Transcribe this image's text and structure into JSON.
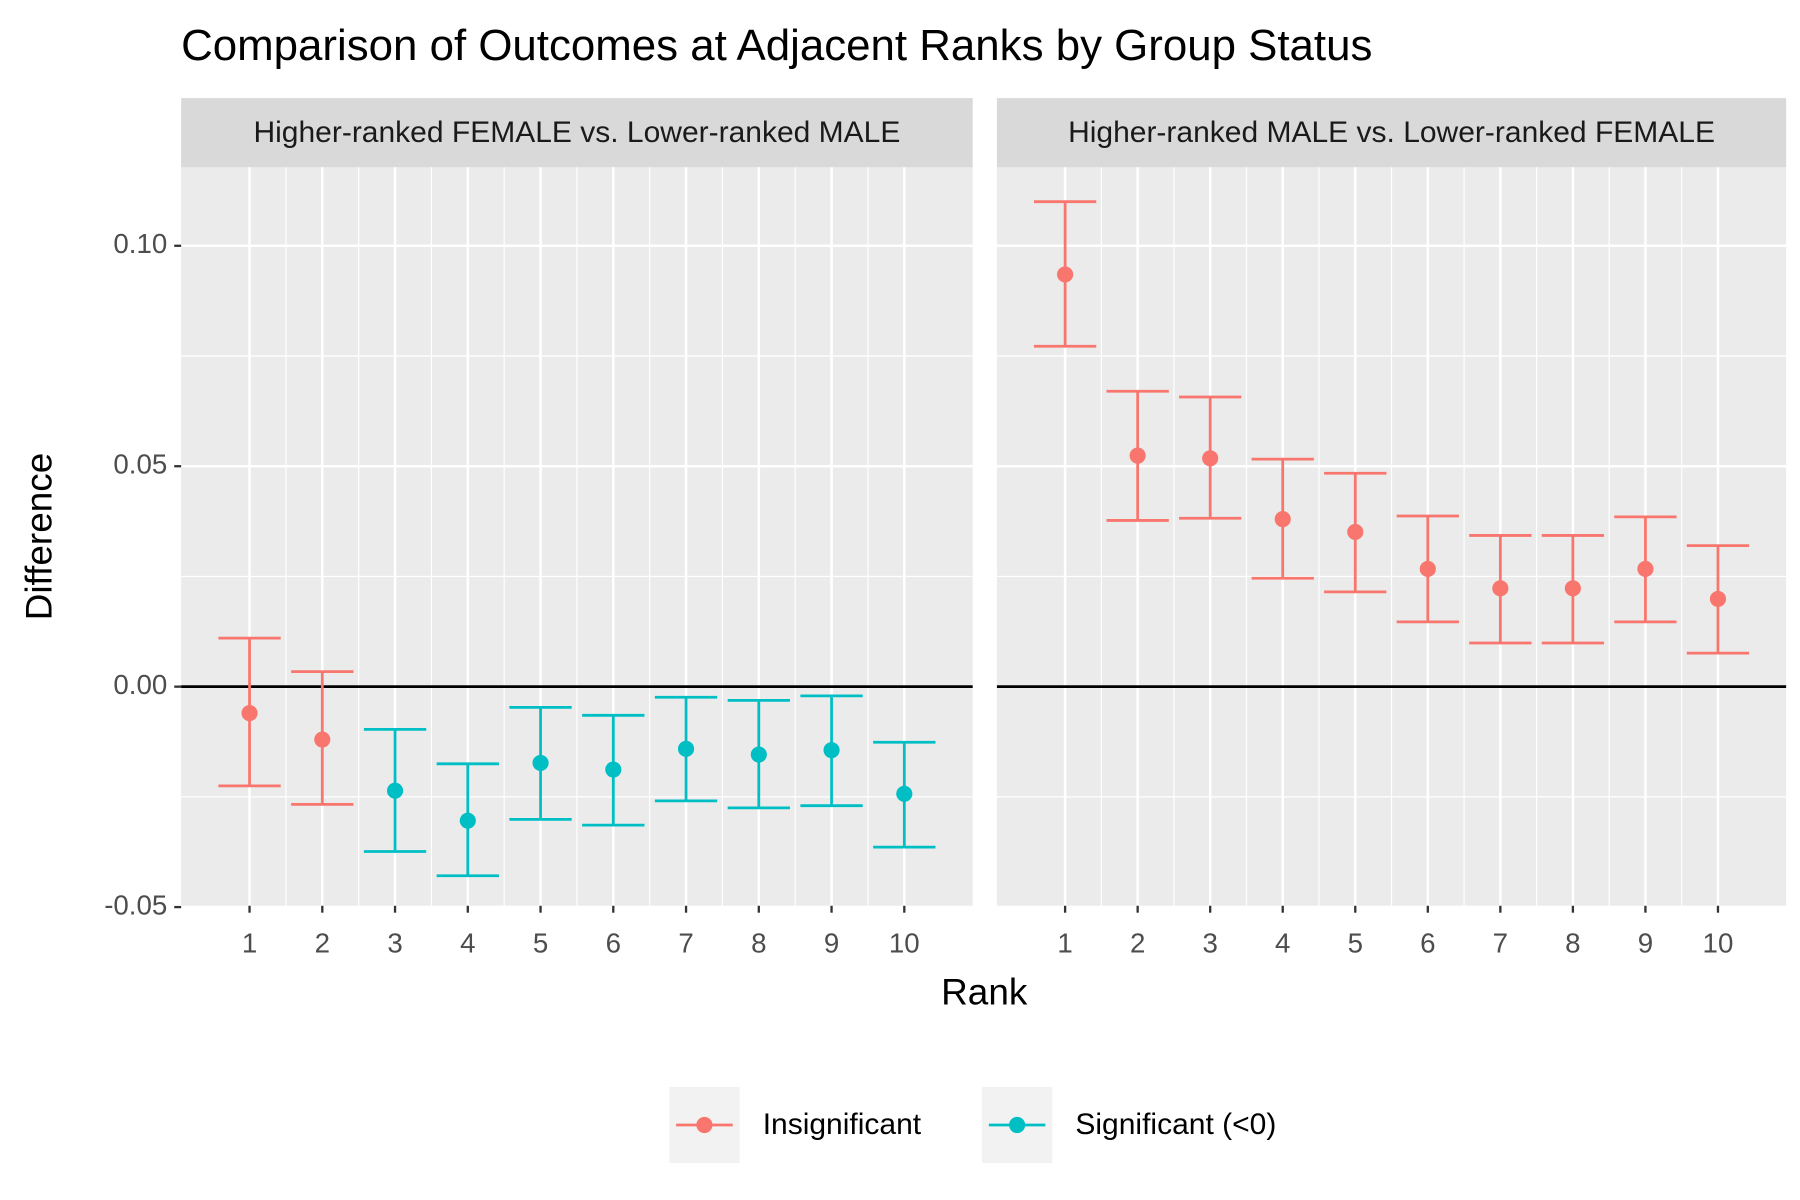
{
  "chart_data": {
    "type": "errorbar",
    "title": "Comparison of Outcomes at Adjacent Ranks by Group Status",
    "x_label": "Rank",
    "y_label": "Difference",
    "categories": [
      1,
      2,
      3,
      4,
      5,
      6,
      7,
      8,
      9,
      10
    ],
    "xlim": [
      0.06,
      10.94
    ],
    "ylim": [
      -0.0497,
      0.1178
    ],
    "yticks": [
      {
        "value": -0.05,
        "label": "-0.05"
      },
      {
        "value": 0,
        "label": "0.00"
      },
      {
        "value": 0.05,
        "label": "0.05"
      },
      {
        "value": 0.1,
        "label": "0.10"
      }
    ],
    "reference_line": 0,
    "grid": true,
    "legend_position": "bottom",
    "series": [
      {
        "name": "Insignificant",
        "color": "#F8766D"
      },
      {
        "name": "Significant (<0)",
        "color": "#00BFC4"
      }
    ],
    "panels": [
      {
        "title": "Higher-ranked FEMALE vs. Lower-ranked MALE",
        "series": [
          {
            "values": [
              -0.006,
              -0.012,
              null,
              null,
              null,
              null,
              null,
              null,
              null,
              null
            ],
            "lower": [
              -0.0225,
              -0.0267,
              null,
              null,
              null,
              null,
              null,
              null,
              null,
              null
            ],
            "upper": [
              0.011,
              0.0034,
              null,
              null,
              null,
              null,
              null,
              null,
              null,
              null
            ]
          },
          {
            "values": [
              null,
              null,
              -0.0236,
              -0.0304,
              -0.0173,
              -0.0188,
              -0.0141,
              -0.0154,
              -0.0144,
              -0.0243
            ],
            "lower": [
              null,
              null,
              -0.0374,
              -0.0429,
              -0.0301,
              -0.0314,
              -0.0259,
              -0.0275,
              -0.027,
              -0.0364
            ],
            "upper": [
              null,
              null,
              -0.0097,
              -0.0175,
              -0.0047,
              -0.0065,
              -0.0024,
              -0.0031,
              -0.0021,
              -0.0126
            ]
          }
        ]
      },
      {
        "title": "Higher-ranked MALE vs. Lower-ranked FEMALE",
        "series": [
          {
            "values": [
              0.0935,
              0.0524,
              0.0518,
              0.038,
              0.0351,
              0.0267,
              0.0223,
              0.0223,
              0.0267,
              0.0199
            ],
            "lower": [
              0.0772,
              0.0377,
              0.0382,
              0.0246,
              0.0215,
              0.0147,
              0.0099,
              0.0099,
              0.0147,
              0.0076
            ],
            "upper": [
              0.11,
              0.067,
              0.0657,
              0.0516,
              0.0484,
              0.0387,
              0.0343,
              0.0343,
              0.0385,
              0.032
            ]
          },
          {
            "values": [
              null,
              null,
              null,
              null,
              null,
              null,
              null,
              null,
              null,
              null
            ],
            "lower": [
              null,
              null,
              null,
              null,
              null,
              null,
              null,
              null,
              null,
              null
            ],
            "upper": [
              null,
              null,
              null,
              null,
              null,
              null,
              null,
              null,
              null,
              null
            ]
          }
        ]
      }
    ]
  }
}
